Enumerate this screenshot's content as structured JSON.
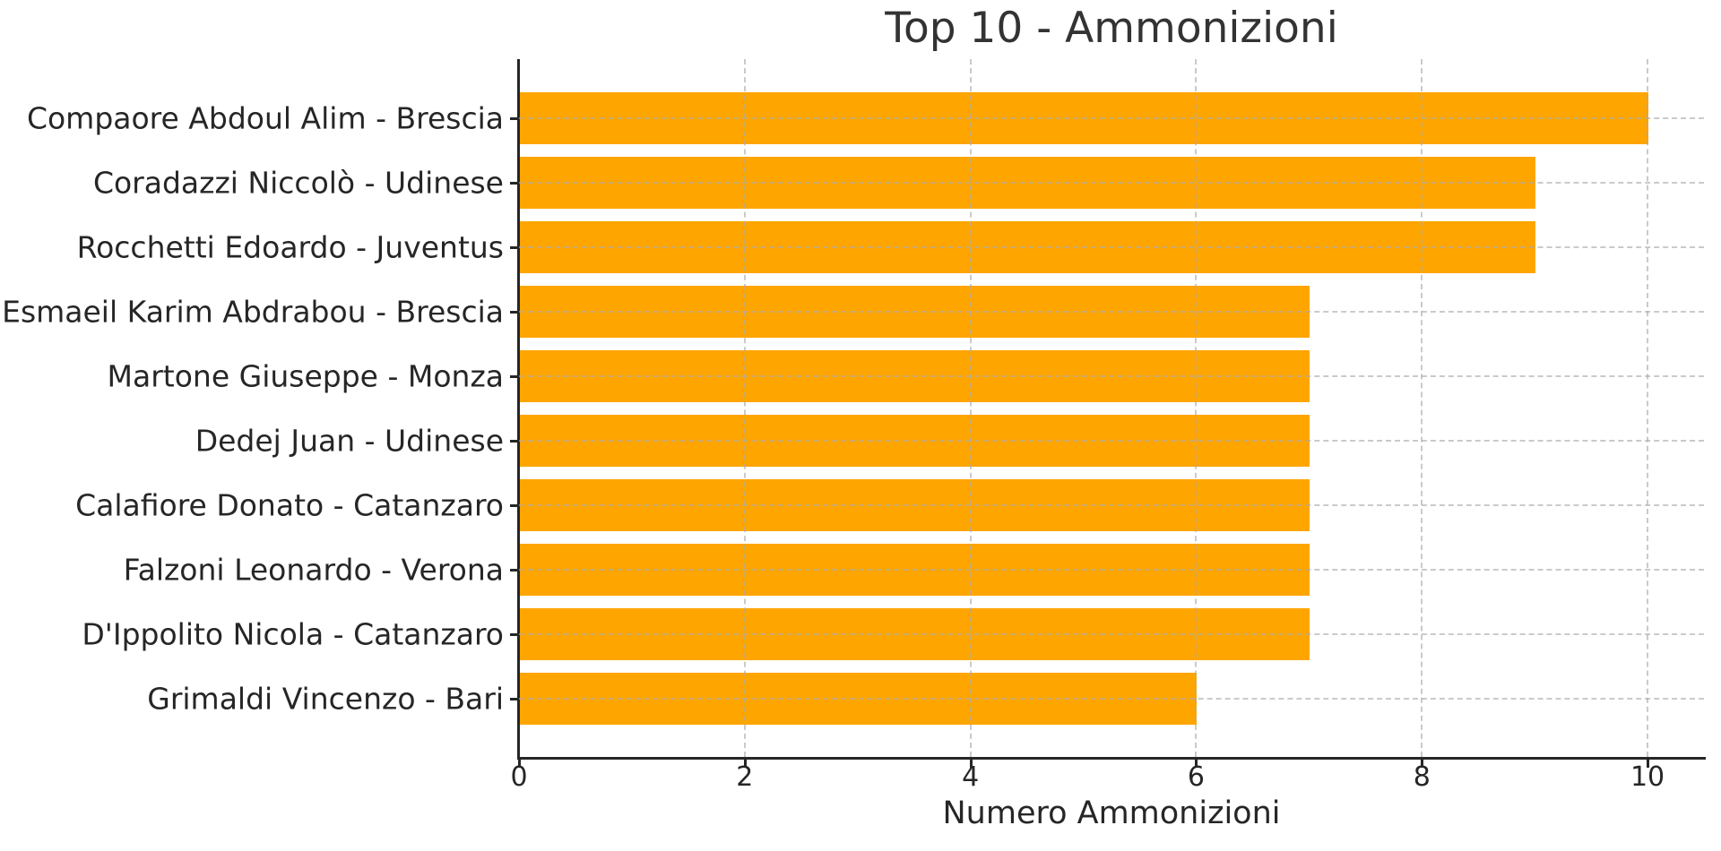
{
  "chart_data": {
    "type": "bar",
    "orientation": "horizontal",
    "title": "Top 10 - Ammonizioni",
    "xlabel": "Numero Ammonizioni",
    "ylabel": "",
    "categories": [
      "Compaore Abdoul Alim - Brescia",
      "Coradazzi Niccolò - Udinese",
      "Rocchetti Edoardo - Juventus",
      "Esmaeil Karim Abdrabou - Brescia",
      "Martone Giuseppe - Monza",
      "Dedej Juan - Udinese",
      "Calafiore Donato - Catanzaro",
      "Falzoni Leonardo - Verona",
      "D'Ippolito Nicola - Catanzaro",
      "Grimaldi Vincenzo - Bari"
    ],
    "values": [
      10,
      9,
      9,
      7,
      7,
      7,
      7,
      7,
      7,
      6
    ],
    "xticks": [
      0,
      2,
      4,
      6,
      8,
      10
    ],
    "xlim": [
      0,
      10.5
    ],
    "grid": true,
    "grid_linestyle": "dashed",
    "legend": "none",
    "bar_color": "#FFA500",
    "background_color": "#FFFFFF",
    "text_color": "#262626",
    "grid_color": "#AAAAAA"
  }
}
